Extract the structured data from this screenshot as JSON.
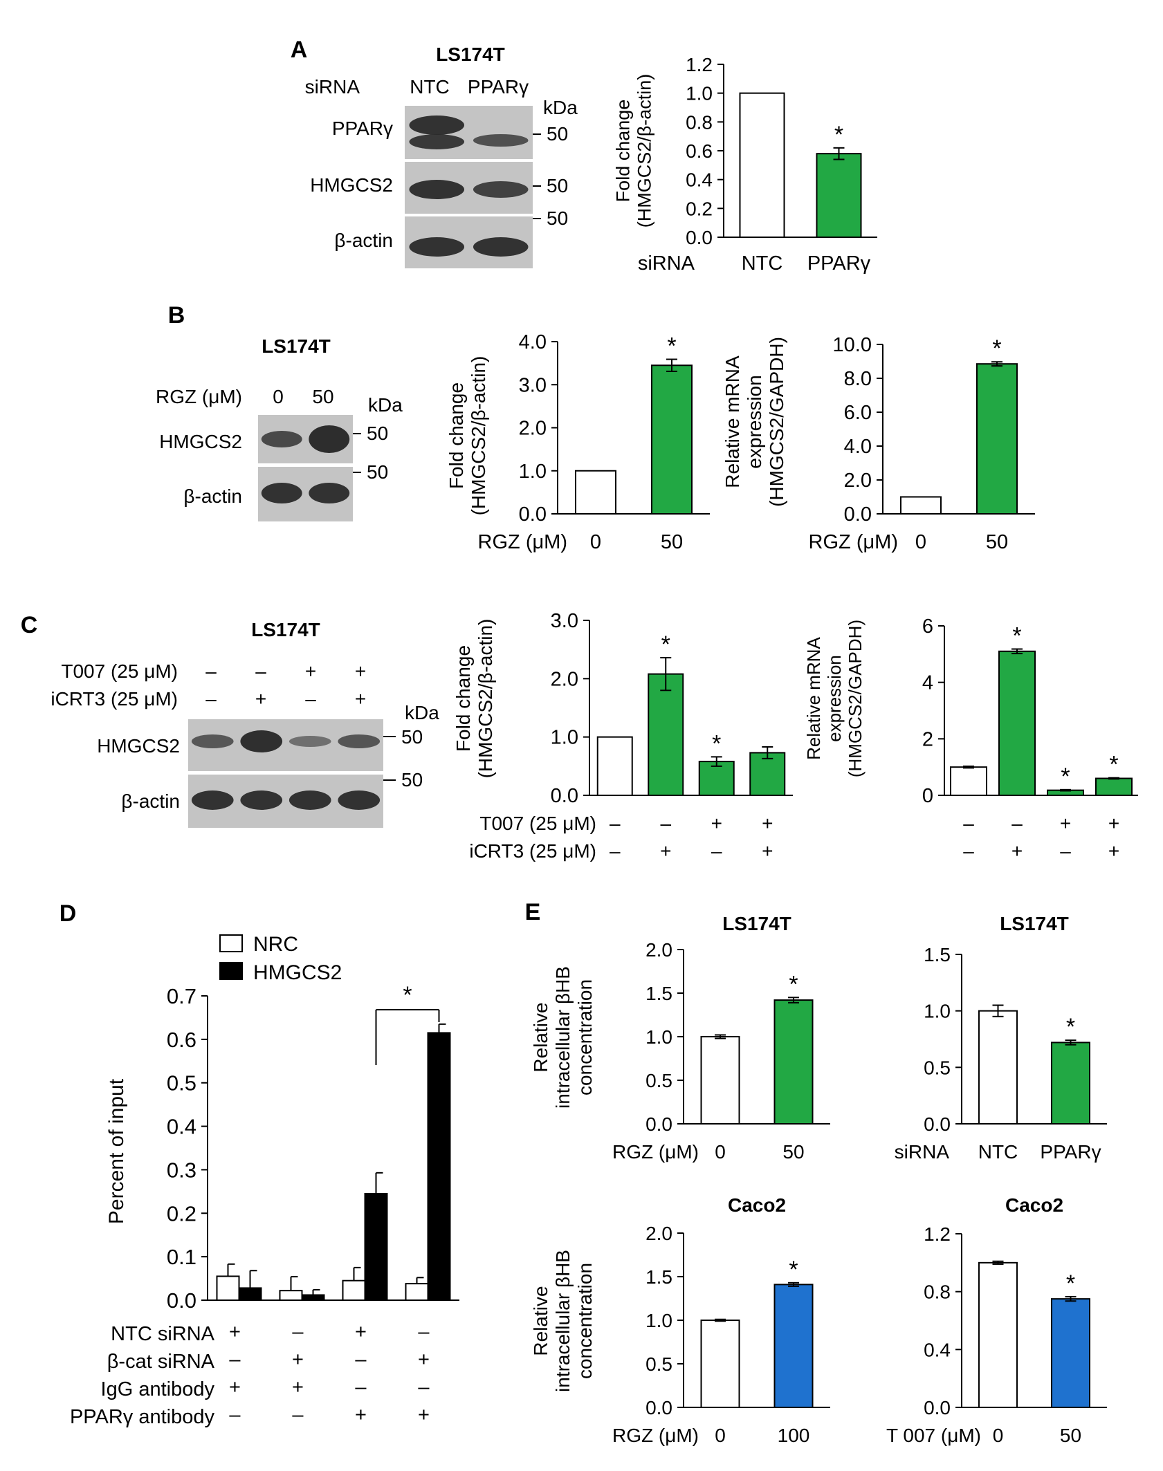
{
  "colors": {
    "green": "#22a844",
    "blue": "#1f72cf",
    "white": "#ffffff",
    "black": "#000000",
    "blot_bg": "#c4c4c4",
    "band": "#2a2a2a"
  },
  "panels": {
    "A": {
      "letter": "A",
      "blot": {
        "cell": "LS174T",
        "row_label": "siRNA",
        "lanes": [
          "NTC",
          "PPARγ"
        ],
        "kda": "kDa",
        "rows": [
          "PPARγ",
          "HMGCS2",
          "β-actin"
        ],
        "markers": [
          "50",
          "50",
          "50"
        ]
      },
      "xrow_label": "siRNA"
    },
    "B": {
      "letter": "B",
      "blot": {
        "cell": "LS174T",
        "row_label": "RGZ (μM)",
        "lanes": [
          "0",
          "50"
        ],
        "kda": "kDa",
        "rows": [
          "HMGCS2",
          "β-actin"
        ],
        "markers": [
          "50",
          "50"
        ]
      },
      "xrow_label": "RGZ (μM)"
    },
    "C": {
      "letter": "C",
      "blot": {
        "cell": "LS174T",
        "treat_labels": [
          "T007 (25 μM)",
          "iCRT3 (25 μM)"
        ],
        "t007": [
          "–",
          "–",
          "+",
          "+"
        ],
        "icrt3": [
          "–",
          "+",
          "–",
          "+"
        ],
        "kda": "kDa",
        "rows": [
          "HMGCS2",
          "β-actin"
        ],
        "markers": [
          "50",
          "50"
        ]
      },
      "xrow_labels": [
        "T007 (25 μM)",
        "iCRT3 (25 μM)"
      ]
    },
    "D": {
      "letter": "D",
      "conditions": [
        {
          "label": "NTC siRNA",
          "values": [
            "+",
            "–",
            "+",
            "–"
          ]
        },
        {
          "label": "β-cat siRNA",
          "values": [
            "–",
            "+",
            "–",
            "+"
          ]
        },
        {
          "label": "IgG antibody",
          "values": [
            "+",
            "+",
            "–",
            "–"
          ]
        },
        {
          "label": "PPARγ antibody",
          "values": [
            "–",
            "–",
            "+",
            "+"
          ]
        }
      ]
    },
    "E": {
      "letter": "E"
    }
  },
  "chart_data": [
    {
      "id": "A",
      "type": "bar",
      "categories": [
        "NTC",
        "PPARγ"
      ],
      "series": [
        {
          "values": [
            1.0,
            0.58
          ],
          "errors": [
            0.0,
            0.04
          ],
          "colors": [
            "white",
            "green"
          ]
        }
      ],
      "ylabel": "Fold change\n(HMGCS2/β-actin)",
      "ylim": [
        0,
        1.2
      ],
      "yticks": [
        "0.0",
        "0.2",
        "0.4",
        "0.6",
        "0.8",
        "1.0",
        "1.2"
      ],
      "stars": [
        "",
        "*"
      ]
    },
    {
      "id": "B1",
      "type": "bar",
      "categories": [
        "0",
        "50"
      ],
      "series": [
        {
          "values": [
            1.0,
            3.45
          ],
          "errors": [
            0.0,
            0.14
          ],
          "colors": [
            "white",
            "green"
          ]
        }
      ],
      "ylabel": "Fold change\n(HMGCS2/β-actin)",
      "ylim": [
        0,
        4.0
      ],
      "yticks": [
        "0.0",
        "1.0",
        "2.0",
        "3.0",
        "4.0"
      ],
      "stars": [
        "",
        "*"
      ]
    },
    {
      "id": "B2",
      "type": "bar",
      "categories": [
        "0",
        "50"
      ],
      "series": [
        {
          "values": [
            1.0,
            8.85
          ],
          "errors": [
            0.0,
            0.12
          ],
          "colors": [
            "white",
            "green"
          ]
        }
      ],
      "ylabel": "Relative mRNA\nexpression\n(HMGCS2/GAPDH)",
      "ylim": [
        0,
        10.0
      ],
      "yticks": [
        "0.0",
        "2.0",
        "4.0",
        "6.0",
        "8.0",
        "10.0"
      ],
      "stars": [
        "",
        "*"
      ]
    },
    {
      "id": "C1",
      "type": "bar",
      "categories": [
        "1",
        "2",
        "3",
        "4"
      ],
      "series": [
        {
          "values": [
            1.0,
            2.08,
            0.58,
            0.73
          ],
          "errors": [
            0.0,
            0.28,
            0.08,
            0.1
          ],
          "colors": [
            "white",
            "green",
            "green",
            "green"
          ]
        }
      ],
      "ylabel": "Fold change\n(HMGCS2/β-actin)",
      "ylim": [
        0,
        3.0
      ],
      "yticks": [
        "0.0",
        "1.0",
        "2.0",
        "3.0"
      ],
      "stars": [
        "",
        "*",
        "*",
        ""
      ],
      "x_rows": [
        [
          "–",
          "–",
          "+",
          "+"
        ],
        [
          "–",
          "+",
          "–",
          "+"
        ]
      ]
    },
    {
      "id": "C2",
      "type": "bar",
      "categories": [
        "1",
        "2",
        "3",
        "4"
      ],
      "series": [
        {
          "values": [
            1.0,
            5.1,
            0.18,
            0.6
          ],
          "errors": [
            0.03,
            0.08,
            0.02,
            0.02
          ],
          "colors": [
            "white",
            "green",
            "green",
            "green"
          ]
        }
      ],
      "ylabel": "Relative mRNA\nexpression\n(HMGCS2/GAPDH)",
      "ylim": [
        0,
        6
      ],
      "yticks": [
        "0",
        "2",
        "4",
        "6"
      ],
      "stars": [
        "",
        "*",
        "*",
        "*"
      ],
      "x_rows": [
        [
          "–",
          "–",
          "+",
          "+"
        ],
        [
          "–",
          "+",
          "–",
          "+"
        ]
      ]
    },
    {
      "id": "D",
      "type": "bar",
      "categories": [
        "1",
        "2",
        "3",
        "4"
      ],
      "series": [
        {
          "name": "NRC",
          "values": [
            0.055,
            0.022,
            0.045,
            0.038
          ],
          "errors": [
            0.028,
            0.032,
            0.03,
            0.014
          ]
        },
        {
          "name": "HMGCS2",
          "values": [
            0.028,
            0.012,
            0.245,
            0.615
          ],
          "errors": [
            0.04,
            0.012,
            0.048,
            0.02
          ]
        }
      ],
      "ylabel": "Percent of input",
      "ylim": [
        0,
        0.7
      ],
      "yticks": [
        "0.0",
        "0.1",
        "0.2",
        "0.3",
        "0.4",
        "0.5",
        "0.6",
        "0.7"
      ],
      "legend": [
        "NRC",
        "HMGCS2"
      ],
      "legend_position": "top-left",
      "bracket_star": "*"
    },
    {
      "id": "E1",
      "type": "bar",
      "title": "LS174T",
      "categories": [
        "0",
        "50"
      ],
      "series": [
        {
          "values": [
            1.0,
            1.42
          ],
          "errors": [
            0.02,
            0.03
          ],
          "colors": [
            "white",
            "green"
          ]
        }
      ],
      "ylabel": "Relative\nintracellular βHB\nconcentration",
      "ylim": [
        0,
        2.0
      ],
      "yticks": [
        "0.0",
        "0.5",
        "1.0",
        "1.5",
        "2.0"
      ],
      "stars": [
        "",
        "*"
      ],
      "xrow_label": "RGZ (μM)"
    },
    {
      "id": "E2",
      "type": "bar",
      "title": "LS174T",
      "categories": [
        "NTC",
        "PPARγ"
      ],
      "series": [
        {
          "values": [
            1.0,
            0.72
          ],
          "errors": [
            0.05,
            0.02
          ],
          "colors": [
            "white",
            "green"
          ]
        }
      ],
      "ylim": [
        0,
        1.5
      ],
      "yticks": [
        "0.0",
        "0.5",
        "1.0",
        "1.5"
      ],
      "stars": [
        "",
        "*"
      ],
      "xrow_label": "siRNA"
    },
    {
      "id": "E3",
      "type": "bar",
      "title": "Caco2",
      "categories": [
        "0",
        "100"
      ],
      "series": [
        {
          "values": [
            1.0,
            1.41
          ],
          "errors": [
            0.01,
            0.02
          ],
          "colors": [
            "white",
            "blue"
          ]
        }
      ],
      "ylabel": "Relative\nintracellular βHB\nconcentration",
      "ylim": [
        0,
        2.0
      ],
      "yticks": [
        "0.0",
        "0.5",
        "1.0",
        "1.5",
        "2.0"
      ],
      "stars": [
        "",
        "*"
      ],
      "xrow_label": "RGZ (μM)"
    },
    {
      "id": "E4",
      "type": "bar",
      "title": "Caco2",
      "categories": [
        "0",
        "50"
      ],
      "series": [
        {
          "values": [
            1.0,
            0.75
          ],
          "errors": [
            0.01,
            0.015
          ],
          "colors": [
            "white",
            "blue"
          ]
        }
      ],
      "ylim": [
        0,
        1.2
      ],
      "yticks": [
        "0.0",
        "0.4",
        "0.8",
        "1.2"
      ],
      "stars": [
        "",
        "*"
      ],
      "xrow_label": "T 007 (μM)"
    }
  ]
}
